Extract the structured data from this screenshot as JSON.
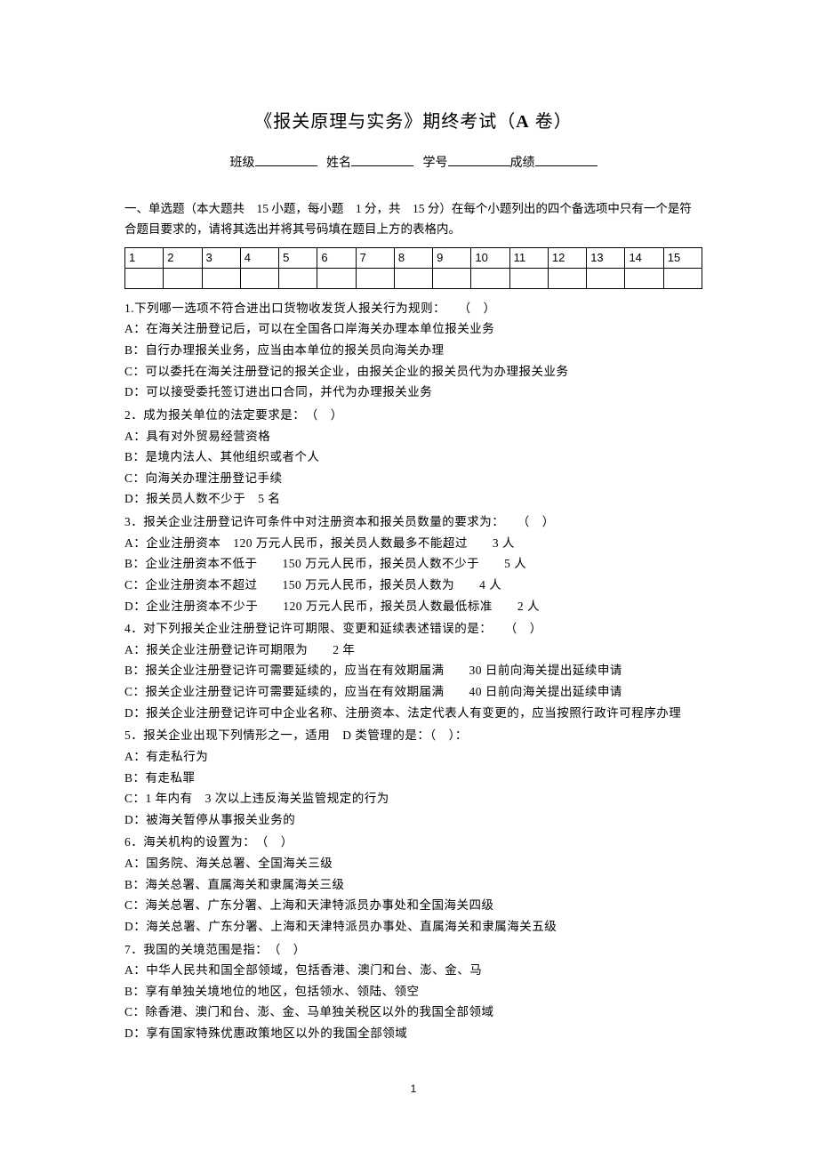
{
  "title": {
    "prefix": "《报关原理与实务》期终考试（",
    "bold": "A",
    "suffix": " 卷）"
  },
  "info": {
    "class_label": "班级",
    "name_label": "姓名",
    "id_label": "学号",
    "score_label": "成绩"
  },
  "instructions": "一、单选题（本大题共　15 小题，每小题　1 分，共　15 分）在每个小题列出的四个备选项中只有一个是符合题目要求的，请将其选出并将其号码填在题目上方的表格内。",
  "grid_headers": [
    "1",
    "2",
    "3",
    "4",
    "5",
    "6",
    "7",
    "8",
    "9",
    "10",
    "11",
    "12",
    "13",
    "14",
    "15"
  ],
  "questions": [
    {
      "stem": "1.下列哪一选项不符合进出口货物收发货人报关行为规则：　　（　）",
      "opts": [
        "A：在海关注册登记后，可以在全国各口岸海关办理本单位报关业务",
        "B：自行办理报关业务，应当由本单位的报关员向海关办理",
        "C：可以委托在海关注册登记的报关企业，由报关企业的报关员代为办理报关业务",
        "D：可以接受委托签订进出口合同，并代为办理报关业务"
      ]
    },
    {
      "stem": "2．成为报关单位的法定要求是：　（　）",
      "opts": [
        "A：具有对外贸易经营资格",
        "B：是境内法人、其他组织或者个人",
        "C：向海关办理注册登记手续",
        "D：报关员人数不少于　5 名"
      ]
    },
    {
      "stem": "3．报关企业注册登记许可条件中对注册资本和报关员数量的要求为：　　（　）",
      "opts": [
        "A：企业注册资本　120 万元人民币，报关员人数最多不能超过　　3 人",
        "B：企业注册资本不低于　　150 万元人民币，报关员人数不少于　　5 人",
        "C：企业注册资本不超过　　150 万元人民币，报关员人数为　　4 人",
        "D：企业注册资本不少于　　120 万元人民币，报关员人数最低标准　　2 人"
      ]
    },
    {
      "stem": "4．对下列报关企业注册登记许可期限、变更和延续表述错误的是：　　（　）",
      "opts": [
        "A：报关企业注册登记许可期限为　　2 年",
        "B：报关企业注册登记许可需要延续的，应当在有效期届满　　30 日前向海关提出延续申请",
        "C：报关企业注册登记许可需要延续的，应当在有效期届满　　40 日前向海关提出延续申请",
        "D：报关企业注册登记许可中企业名称、注册资本、法定代表人有变更的，应当按照行政许可程序办理"
      ]
    },
    {
      "stem": "5．报关企业出现下列情形之一，适用　D 类管理的是：（　）：",
      "opts": [
        "A：有走私行为",
        "B：有走私罪",
        "C：1 年内有　3 次以上违反海关监管规定的行为",
        "D：被海关暂停从事报关业务的"
      ]
    },
    {
      "stem": "6．海关机构的设置为：　（　）",
      "opts": [
        "A：国务院、海关总署、全国海关三级",
        "B：海关总署、直属海关和隶属海关三级",
        "C：海关总署、广东分署、上海和天津特派员办事处和全国海关四级",
        "D：海关总署、广东分署、上海和天津特派员办事处、直属海关和隶属海关五级"
      ]
    },
    {
      "stem": "7．我国的关境范围是指：　（　）",
      "opts": [
        "A：中华人民共和国全部领域，包括香港、澳门和台、澎、金、马",
        "B：享有单独关境地位的地区，包括领水、领陆、领空",
        "C：除香港、澳门和台、澎、金、马单独关税区以外的我国全部领域",
        "D：享有国家特殊优惠政策地区以外的我国全部领域"
      ]
    }
  ],
  "page_number": "1",
  "colors": {
    "text": "#000000",
    "bg": "#ffffff",
    "border": "#000000"
  }
}
